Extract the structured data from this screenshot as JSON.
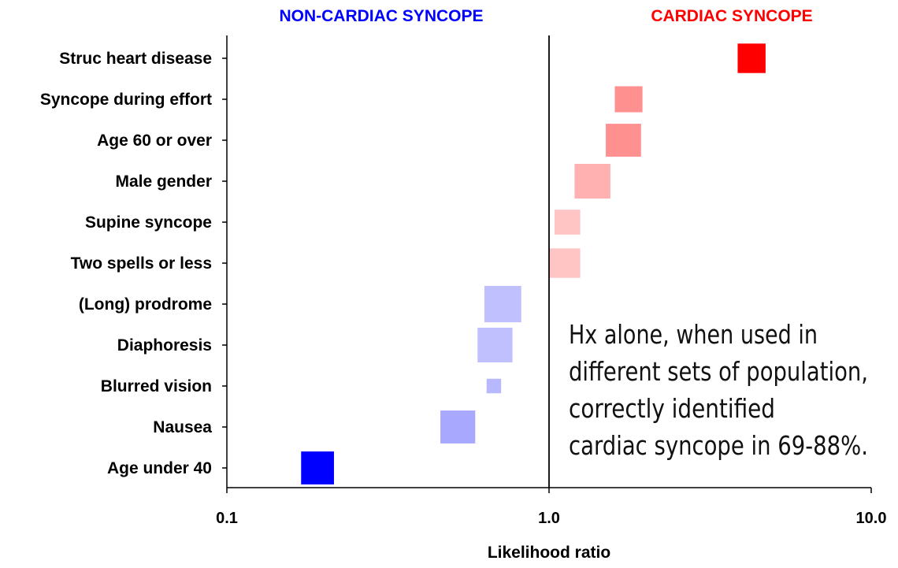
{
  "chart_data": {
    "type": "forest",
    "title": "",
    "header_left": "NON-CARDIAC SYNCOPE",
    "header_right": "CARDIAC SYNCOPE",
    "header_left_color": "#0000ff",
    "header_right_color": "#ff0000",
    "xlabel": "Likelihood ratio",
    "xscale": "log",
    "xlim": [
      0.1,
      10.0
    ],
    "xticks": [
      "0.1",
      "1.0",
      "10.0"
    ],
    "reference_line": 1.0,
    "rows": [
      {
        "label": "Struc heart disease",
        "low": 3.85,
        "high": 4.7,
        "weight": 0.85,
        "color": "#ff0000"
      },
      {
        "label": "Syncope during effort",
        "low": 1.6,
        "high": 1.95,
        "weight": 0.75,
        "color": "#ff9090"
      },
      {
        "label": "Age 60 or over",
        "low": 1.5,
        "high": 1.93,
        "weight": 0.95,
        "color": "#ff9090"
      },
      {
        "label": "Male gender",
        "low": 1.2,
        "high": 1.55,
        "weight": 1.0,
        "color": "#ffb0b0"
      },
      {
        "label": "Supine syncope",
        "low": 1.04,
        "high": 1.25,
        "weight": 0.72,
        "color": "#ffc4c4"
      },
      {
        "label": "Two spells or less",
        "low": 1.0,
        "high": 1.25,
        "weight": 0.85,
        "color": "#ffc4c4"
      },
      {
        "label": "(Long) prodrome",
        "low": 0.63,
        "high": 0.82,
        "weight": 1.05,
        "color": "#c0c0ff"
      },
      {
        "label": "Diaphoresis",
        "low": 0.6,
        "high": 0.77,
        "weight": 1.0,
        "color": "#c0c0ff"
      },
      {
        "label": "Blurred vision",
        "low": 0.64,
        "high": 0.71,
        "weight": 0.42,
        "color": "#b8b8ff"
      },
      {
        "label": "Nausea",
        "low": 0.46,
        "high": 0.59,
        "weight": 0.95,
        "color": "#a8a8ff"
      },
      {
        "label": "Age under 40",
        "low": 0.17,
        "high": 0.215,
        "weight": 0.95,
        "color": "#0000ff"
      }
    ],
    "annotation": [
      "Hx alone, when used in",
      "different sets of population,",
      "correctly identified",
      "cardiac syncope in 69-88%."
    ]
  }
}
